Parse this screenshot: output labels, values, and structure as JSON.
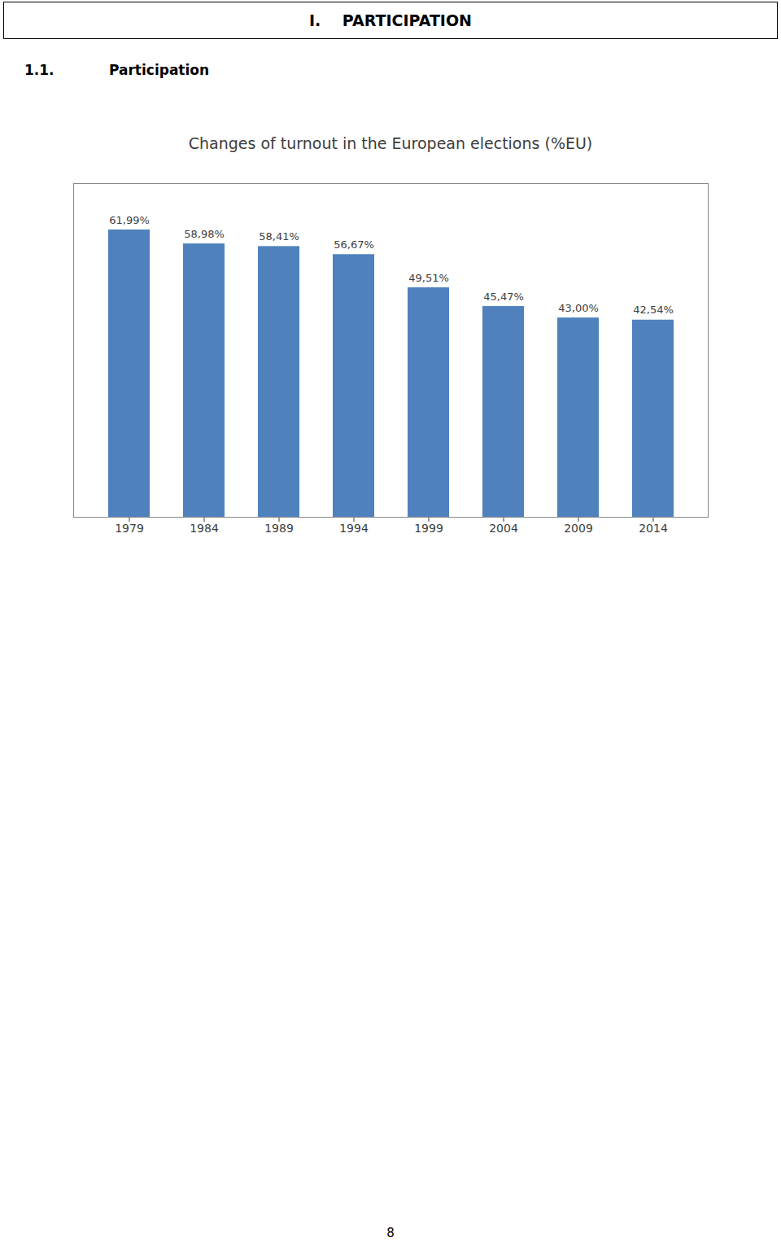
{
  "header_title": "I.    PARTICIPATION",
  "section_label": "1.1.",
  "section_title": "Participation",
  "page_number": "8",
  "chart_data": {
    "type": "bar",
    "title": "Changes of turnout in the European elections (%EU)",
    "categories": [
      "1979",
      "1984",
      "1989",
      "1994",
      "1999",
      "2004",
      "2009",
      "2014"
    ],
    "values": [
      61.99,
      58.98,
      58.41,
      56.67,
      49.51,
      45.47,
      43.0,
      42.54
    ],
    "value_labels": [
      "61,99%",
      "58,98%",
      "58,41%",
      "56,67%",
      "49,51%",
      "45,47%",
      "43,00%",
      "42,54%"
    ],
    "data_labels": true,
    "color": "#4F81BD",
    "ylim": [
      0,
      72
    ],
    "tick_labels": "x",
    "grid": false
  }
}
